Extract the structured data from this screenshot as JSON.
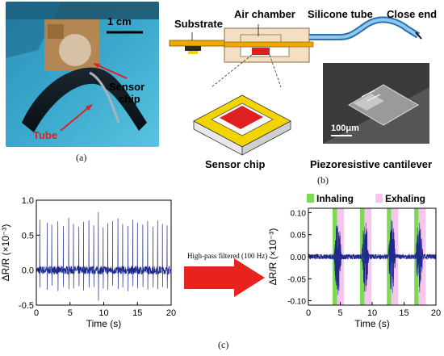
{
  "panel_a": {
    "scale_label": "1 cm",
    "sensor_label_line1": "Sensor",
    "sensor_label_line2": "chip",
    "tube_label": "Tube",
    "caption": "(a)"
  },
  "panel_b": {
    "labels": {
      "substrate": "Substrate",
      "air_chamber": "Air chamber",
      "silicone_tube": "Silicone tube",
      "close_end": "Close end",
      "sensor_chip": "Sensor chip",
      "cantilever": "Piezoresistive cantilever",
      "scale": "100μm"
    },
    "caption": "(b)"
  },
  "panel_c": {
    "arrow_label": "High-pass filtered (100 Hz)",
    "caption": "(c)",
    "legend": {
      "inhaling": "Inhaling",
      "exhaling": "Exhaling"
    },
    "colors": {
      "signal": "#1f2a8c",
      "inhaling": "#7ed957",
      "exhaling": "#f6c6ee",
      "arrow": "#e8231e"
    }
  },
  "chart_data": [
    {
      "type": "line",
      "xlabel": "Time (s)",
      "ylabel": "ΔR/R (×10⁻³)",
      "xlim": [
        0,
        20
      ],
      "ylim": [
        -0.5,
        1.0
      ],
      "xticks": [
        "0",
        "5",
        "10",
        "15",
        "20"
      ],
      "yticks": [
        "-0.5",
        "0.0",
        "0.5",
        "1.0"
      ],
      "spike_times": [
        0.5,
        1.6,
        2.3,
        3.2,
        4.0,
        4.8,
        5.5,
        6.3,
        7.0,
        7.8,
        8.5,
        9.2,
        9.9,
        10.6,
        11.3,
        12.1,
        12.8,
        13.6,
        14.3,
        15.0,
        15.8,
        16.5,
        17.3,
        18.0,
        18.7,
        19.4
      ],
      "spike_peaks": [
        0.72,
        0.68,
        0.65,
        0.7,
        0.63,
        0.75,
        0.66,
        0.62,
        0.69,
        0.71,
        0.64,
        0.83,
        0.61,
        0.67,
        0.7,
        0.74,
        0.66,
        0.63,
        0.72,
        0.68,
        0.65,
        0.7,
        0.62,
        0.71,
        0.66,
        0.64
      ],
      "spike_troughs": [
        -0.25,
        -0.28,
        -0.22,
        -0.3,
        -0.24,
        -0.27,
        -0.26,
        -0.23,
        -0.29,
        -0.25,
        -0.24,
        -0.44,
        -0.26,
        -0.28,
        -0.22,
        -0.27,
        -0.25,
        -0.3,
        -0.23,
        -0.26,
        -0.24,
        -0.28,
        -0.25,
        -0.27,
        -0.24,
        -0.26
      ]
    },
    {
      "type": "line",
      "xlabel": "Time (s)",
      "ylabel": "ΔR/R (×10⁻³)",
      "xlim": [
        0,
        20
      ],
      "ylim": [
        -0.11,
        0.11
      ],
      "xticks": [
        "0",
        "5",
        "10",
        "15",
        "20"
      ],
      "yticks": [
        "0.10",
        "0.05",
        "0.00",
        "-0.05",
        "-0.10"
      ],
      "series": [
        {
          "name": "Inhaling",
          "intervals": [
            [
              3.8,
              4.5
            ],
            [
              8.1,
              8.8
            ],
            [
              12.3,
              13.0
            ],
            [
              16.6,
              17.3
            ]
          ]
        },
        {
          "name": "Exhaling",
          "intervals": [
            [
              4.5,
              5.6
            ],
            [
              8.8,
              9.9
            ],
            [
              13.0,
              14.1
            ],
            [
              17.3,
              18.4
            ]
          ]
        }
      ],
      "bursts": [
        {
          "center": 4.6,
          "width": 1.3,
          "amp": 0.095
        },
        {
          "center": 8.9,
          "width": 1.3,
          "amp": 0.085
        },
        {
          "center": 13.1,
          "width": 1.3,
          "amp": 0.09
        },
        {
          "center": 17.4,
          "width": 1.3,
          "amp": 0.085
        }
      ]
    }
  ]
}
